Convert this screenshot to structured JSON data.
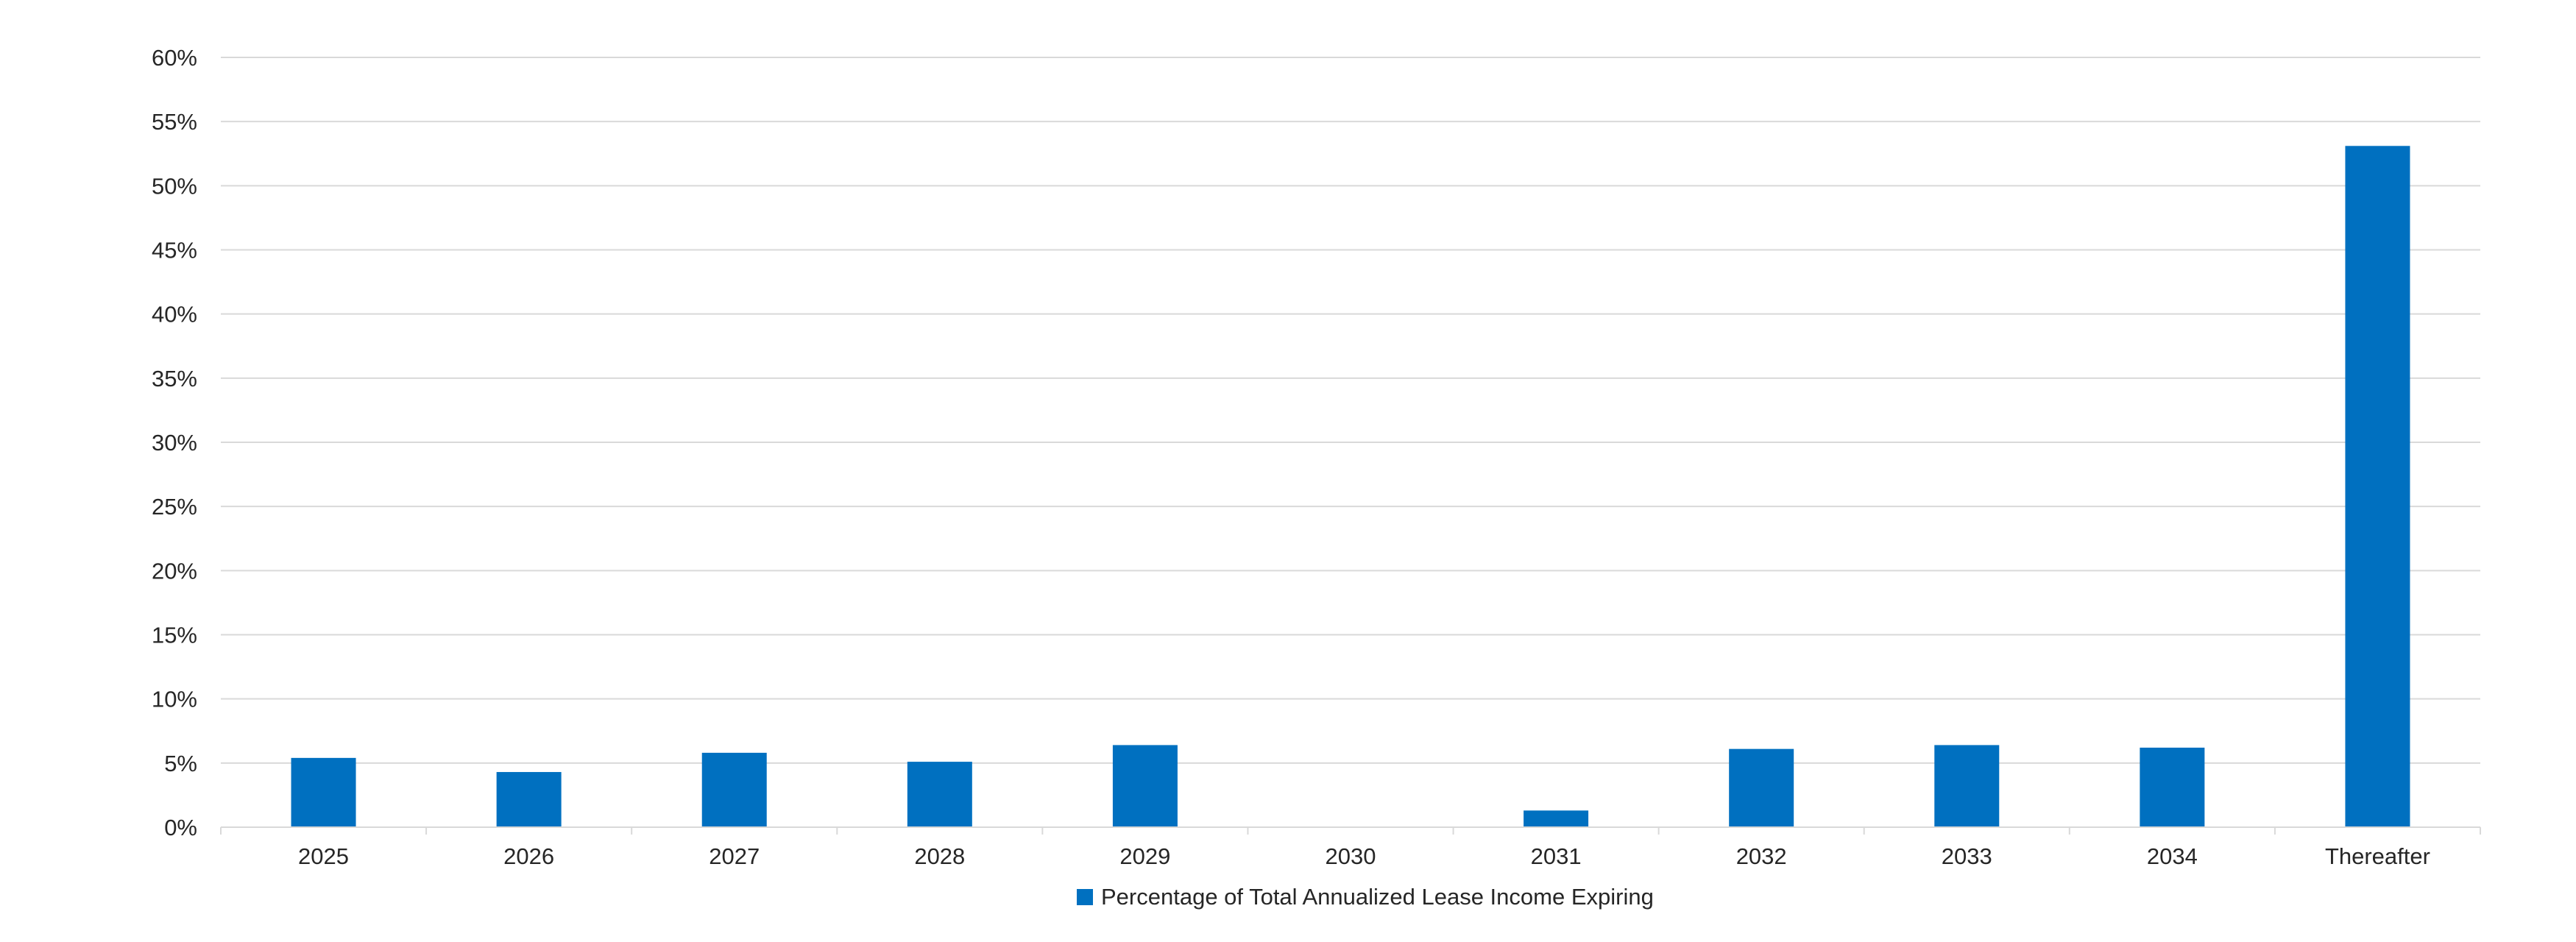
{
  "chart_data": {
    "type": "bar",
    "title": "",
    "xlabel": "",
    "ylabel": "",
    "categories": [
      "2025",
      "2026",
      "2027",
      "2028",
      "2029",
      "2030",
      "2031",
      "2032",
      "2033",
      "2034",
      "Thereafter"
    ],
    "series": [
      {
        "name": "Percentage of Total Annualized Lease Income Expiring",
        "values": [
          5.4,
          4.3,
          5.8,
          5.1,
          6.4,
          0,
          1.3,
          6.1,
          6.4,
          6.2,
          53.1
        ],
        "color": "#0070C0"
      }
    ],
    "ylim": [
      0,
      60
    ],
    "y_ticks": [
      0,
      5,
      10,
      15,
      20,
      25,
      30,
      35,
      40,
      45,
      50,
      55,
      60
    ],
    "y_tick_labels": [
      "0%",
      "5%",
      "10%",
      "15%",
      "20%",
      "25%",
      "30%",
      "35%",
      "40%",
      "45%",
      "50%",
      "55%",
      "60%"
    ],
    "grid": true,
    "legend_position": "bottom"
  },
  "colors": {
    "bar": "#0070C0",
    "gridline": "#d9d9d9",
    "axis": "#d9d9d9",
    "text": "#262626"
  }
}
